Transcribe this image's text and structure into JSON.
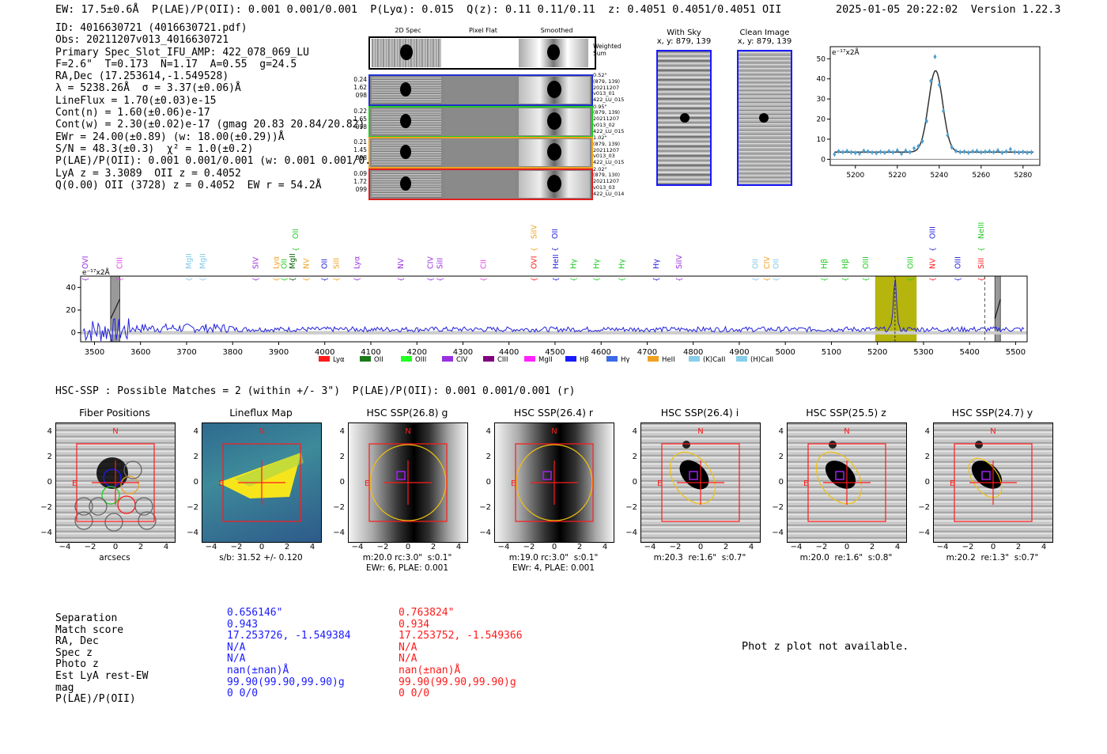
{
  "header": {
    "left": "EW: 17.5±0.6Å  P(LAE)/P(OII): 0.001 0.001/0.001  P(Lyα): 0.015  Q(z): 0.11 0.11/0.11  z: 0.4051 0.4051/0.4051 OII",
    "timestamp": "2025-01-05 20:22:02",
    "version": "Version 1.22.3"
  },
  "info_lines": [
    "ID: 4016630721 (4016630721.pdf)",
    "Obs: 20211207v013_4016630721",
    "Primary Spec_Slot_IFU_AMP: 422_078_069_LU",
    "F=2.6\"  T=0.173  N=1.17  A=0.55  g=24.5",
    "RA,Dec (17.253614,-1.549528)",
    "λ = 5238.26Å  σ = 3.37(±0.06)Å",
    "LineFlux = 1.70(±0.03)e-15",
    "Cont(n) = 1.60(±0.06)e-17",
    "Cont(w) = 2.30(±0.02)e-17 (gmag 20.83 20.84/20.82)",
    "EWr = 24.00(±0.89) (w: 18.00(±0.29))Å",
    "S/N = 48.3(±0.3)  χ² = 1.0(±0.2)",
    "P(LAE)/P(OII): 0.001 0.001/0.001 (w: 0.001 0.001/0.001)",
    "LyA z = 3.3089  OII z = 0.4052",
    "Q(0.00) OII (3728) z = 0.4052  EW r = 54.2Å"
  ],
  "fiber_cutouts": {
    "col_headers": [
      "2D Spec",
      "Pixel Flat",
      "Smoothed"
    ],
    "weighted_label": "Weighted Sum",
    "rows": [
      {
        "left": [
          "0.24",
          "1.62",
          "098"
        ],
        "right": [
          "0.52\"",
          "(879, 139)",
          "20211207",
          "v013_01",
          "422_LU_015"
        ],
        "color": "#2030d0"
      },
      {
        "left": [
          "0.22",
          "1.65",
          "098"
        ],
        "right": [
          "0.95\"",
          "(879, 139)",
          "20211207",
          "v013_02",
          "422_LU_015"
        ],
        "color": "#22cc22"
      },
      {
        "left": [
          "0.21",
          "1.45",
          "098"
        ],
        "right": [
          "1.02\"",
          "(879, 139)",
          "20211207",
          "v013_03",
          "422_LU_015"
        ],
        "color": "#f0a020"
      },
      {
        "left": [
          "0.09",
          "1.72",
          "099"
        ],
        "right": [
          "2.02\"",
          "(879, 130)",
          "20211207",
          "v013_03",
          "422_LU_014"
        ],
        "color": "#e02020"
      }
    ]
  },
  "sky_panels": [
    {
      "title": "With Sky",
      "subtitle": "x, y: 879, 139"
    },
    {
      "title": "Clean Image",
      "subtitle": "x, y: 879, 139"
    }
  ],
  "colors": {
    "blue": "#1a1aff",
    "red": "#ff1a1a",
    "olive": "#b5b50e",
    "spec_line": "#2222dd",
    "fit": "#4d9fd1"
  },
  "chart_data": [
    {
      "type": "scatter",
      "title": "",
      "ylabel": "e⁻¹⁷x2Å",
      "xlim": [
        5188,
        5288
      ],
      "ylim": [
        -3,
        56
      ],
      "xticks": [
        5200,
        5220,
        5240,
        5260,
        5280
      ],
      "yticks": [
        0,
        10,
        20,
        30,
        40,
        50
      ],
      "x": [
        5190,
        5192,
        5194,
        5196,
        5198,
        5200,
        5202,
        5204,
        5206,
        5208,
        5210,
        5212,
        5214,
        5216,
        5218,
        5220,
        5222,
        5224,
        5226,
        5228,
        5230,
        5232,
        5234,
        5236,
        5238,
        5240,
        5242,
        5244,
        5246,
        5248,
        5250,
        5252,
        5254,
        5256,
        5258,
        5260,
        5262,
        5264,
        5266,
        5268,
        5270,
        5272,
        5274,
        5276,
        5278,
        5280,
        5282,
        5284
      ],
      "y": [
        2.5,
        4,
        3.6,
        4.1,
        3.5,
        3.2,
        2.9,
        4.2,
        3.9,
        3.4,
        3.1,
        3.7,
        3.3,
        4.0,
        3.5,
        4.4,
        2.8,
        4.3,
        3.6,
        5.5,
        6.5,
        9,
        19,
        39,
        51,
        37,
        24,
        12,
        6,
        4.1,
        3.6,
        3.8,
        3.3,
        3.9,
        4.1,
        3.5,
        3.8,
        4.0,
        3.6,
        4.4,
        3.3,
        3.9,
        5,
        3.6,
        3.4,
        3.7,
        3.3,
        3.5
      ],
      "fit": {
        "center": 5238.26,
        "sigma": 3.37,
        "amplitude": 40.5,
        "continuum": 3.6
      }
    },
    {
      "type": "line",
      "ylabel": "e⁻¹⁷x2Å",
      "xlim": [
        3470,
        5525
      ],
      "ylim": [
        -8,
        50
      ],
      "xticks": [
        3500,
        3600,
        3700,
        3800,
        3900,
        4000,
        4100,
        4200,
        4300,
        4400,
        4500,
        4600,
        4700,
        4800,
        4900,
        5000,
        5100,
        5200,
        5300,
        5400,
        5500
      ],
      "yticks": [
        0,
        20,
        40
      ],
      "emission_peak": {
        "x": 5238,
        "y": 45
      },
      "highlight_band": [
        5195,
        5285
      ],
      "dashed_line": 5433,
      "bad_bands": [
        [
          3535,
          3555
        ],
        [
          5455,
          5467
        ]
      ],
      "line_labels": [
        {
          "name": "OVI",
          "x": 3480,
          "color": "#9a30e0",
          "row": 1
        },
        {
          "name": "CIII",
          "x": 3555,
          "color": "#e040e0",
          "row": 1
        },
        {
          "name": "MgII",
          "x": 3705,
          "color": "#80c8e8",
          "row": 1
        },
        {
          "name": "MgII",
          "x": 3735,
          "color": "#80c8e8",
          "row": 1
        },
        {
          "name": "SIV",
          "x": 3850,
          "color": "#9a30e0",
          "row": 1
        },
        {
          "name": "Lyα",
          "x": 3895,
          "color": "#f0a020",
          "row": 1
        },
        {
          "name": "OII",
          "x": 3912,
          "color": "#22cc22",
          "row": 1
        },
        {
          "name": "MgII",
          "x": 3930,
          "color": "#006600",
          "row": 1
        },
        {
          "name": "OII",
          "x": 3937,
          "color": "#22cc22",
          "row": 0
        },
        {
          "name": "NV",
          "x": 3960,
          "color": "#f0a020",
          "row": 1
        },
        {
          "name": "OII",
          "x": 4000,
          "color": "#2222dd",
          "row": 1
        },
        {
          "name": "SiII",
          "x": 4025,
          "color": "#f0a020",
          "row": 1
        },
        {
          "name": "Lyα",
          "x": 4070,
          "color": "#9a30e0",
          "row": 1
        },
        {
          "name": "NV",
          "x": 4165,
          "color": "#9a30e0",
          "row": 1
        },
        {
          "name": "CIV",
          "x": 4230,
          "color": "#9a30e0",
          "row": 1
        },
        {
          "name": "SiII",
          "x": 4250,
          "color": "#9a30e0",
          "row": 1
        },
        {
          "name": "CII",
          "x": 4345,
          "color": "#e040e0",
          "row": 1
        },
        {
          "name": "SiIV",
          "x": 4455,
          "color": "#f0a020",
          "row": 0
        },
        {
          "name": "OVI",
          "x": 4455,
          "color": "#ff1a1a",
          "row": 1
        },
        {
          "name": "OII",
          "x": 4500,
          "color": "#2222dd",
          "row": 0
        },
        {
          "name": "HeII",
          "x": 4502,
          "color": "#2222dd",
          "row": 1
        },
        {
          "name": "Hγ",
          "x": 4540,
          "color": "#22cc22",
          "row": 1
        },
        {
          "name": "Hγ",
          "x": 4590,
          "color": "#22cc22",
          "row": 1
        },
        {
          "name": "Hγ",
          "x": 4645,
          "color": "#22cc22",
          "row": 1
        },
        {
          "name": "Hγ",
          "x": 4720,
          "color": "#2222dd",
          "row": 1
        },
        {
          "name": "SiIV",
          "x": 4770,
          "color": "#9a30e0",
          "row": 1
        },
        {
          "name": "OII",
          "x": 4935,
          "color": "#80c8e8",
          "row": 1
        },
        {
          "name": "CIV",
          "x": 4960,
          "color": "#f0a020",
          "row": 1
        },
        {
          "name": "OII",
          "x": 4980,
          "color": "#80c8e8",
          "row": 1
        },
        {
          "name": "Hβ",
          "x": 5085,
          "color": "#22cc22",
          "row": 1
        },
        {
          "name": "Hβ",
          "x": 5130,
          "color": "#22cc22",
          "row": 1
        },
        {
          "name": "OIII",
          "x": 5175,
          "color": "#22cc22",
          "row": 1
        },
        {
          "name": "OIII",
          "x": 5272,
          "color": "#22cc22",
          "row": 1
        },
        {
          "name": "OIII",
          "x": 5320,
          "color": "#2222dd",
          "row": 0
        },
        {
          "name": "NV",
          "x": 5320,
          "color": "#ff1a1a",
          "row": 1
        },
        {
          "name": "OIII",
          "x": 5375,
          "color": "#2222dd",
          "row": 1
        },
        {
          "name": "NeIII",
          "x": 5425,
          "color": "#22cc22",
          "row": 0
        },
        {
          "name": "SiII",
          "x": 5425,
          "color": "#ff1a1a",
          "row": 1
        }
      ]
    }
  ],
  "legend": [
    {
      "name": "Lyα",
      "color": "#ff1a1a"
    },
    {
      "name": "OII",
      "color": "#1a7a1a"
    },
    {
      "name": "OIII",
      "color": "#22ff22"
    },
    {
      "name": "CIV",
      "color": "#9a30e0"
    },
    {
      "name": "CIII",
      "color": "#800080"
    },
    {
      "name": "MgII",
      "color": "#ff22ff"
    },
    {
      "name": "Hβ",
      "color": "#1a1aff"
    },
    {
      "name": "Hγ",
      "color": "#3a6ae8"
    },
    {
      "name": "HeII",
      "color": "#f0a020"
    },
    {
      "name": "(K)CaII",
      "color": "#87ceeb"
    },
    {
      "name": "(H)CaII",
      "color": "#87ceeb"
    }
  ],
  "hsc": {
    "title": "HSC-SSP : Possible Matches = 2 (within +/- 3\")  P(LAE)/P(OII): 0.001 0.001/0.001 (r)",
    "panels": [
      {
        "title": "Fiber Positions",
        "caption1": "arcsecs",
        "caption2": ""
      },
      {
        "title": "Lineflux Map",
        "caption1": "s/b: 31.52 +/- 0.120",
        "caption2": ""
      },
      {
        "title": "HSC SSP(26.8) g",
        "caption1": "m:20.0 rc:3.0\"  s:0.1\"",
        "caption2": "EWr: 6, PLAE: 0.001"
      },
      {
        "title": "HSC SSP(26.4) r",
        "caption1": "m:19.0 rc:3.0\"  s:0.1\"",
        "caption2": "EWr: 4, PLAE: 0.001"
      },
      {
        "title": "HSC SSP(26.4) i",
        "caption1": "m:20.3  re:1.6\"  s:0.7\"",
        "caption2": ""
      },
      {
        "title": "HSC SSP(25.5) z",
        "caption1": "m:20.0  re:1.6\"  s:0.8\"",
        "caption2": ""
      },
      {
        "title": "HSC SSP(24.7) y",
        "caption1": "m:20.2  re:1.3\"  s:0.7\"",
        "caption2": ""
      }
    ],
    "compass": {
      "north": "N",
      "east": "E"
    },
    "axis_ticks": [
      "4",
      "2",
      "0",
      "−2",
      "−4"
    ]
  },
  "match_table": {
    "labels": [
      "Separation",
      "Match score",
      "RA, Dec",
      "Spec z",
      "Photo z",
      "Est LyA rest-EW",
      "mag",
      "P(LAE)/P(OII)"
    ],
    "col1": [
      "0.656146\"",
      "0.943",
      "17.253726, -1.549384",
      "N/A",
      "N/A",
      "nan(±nan)Å",
      "99.90(99.90,99.90)g",
      "0 0/0"
    ],
    "col2": [
      "0.763824\"",
      "0.934",
      "17.253752, -1.549366",
      "N/A",
      "N/A",
      "nan(±nan)Å",
      "99.90(99.90,99.90)g",
      "0 0/0"
    ]
  },
  "phot_z_note": "Phot z plot not available."
}
